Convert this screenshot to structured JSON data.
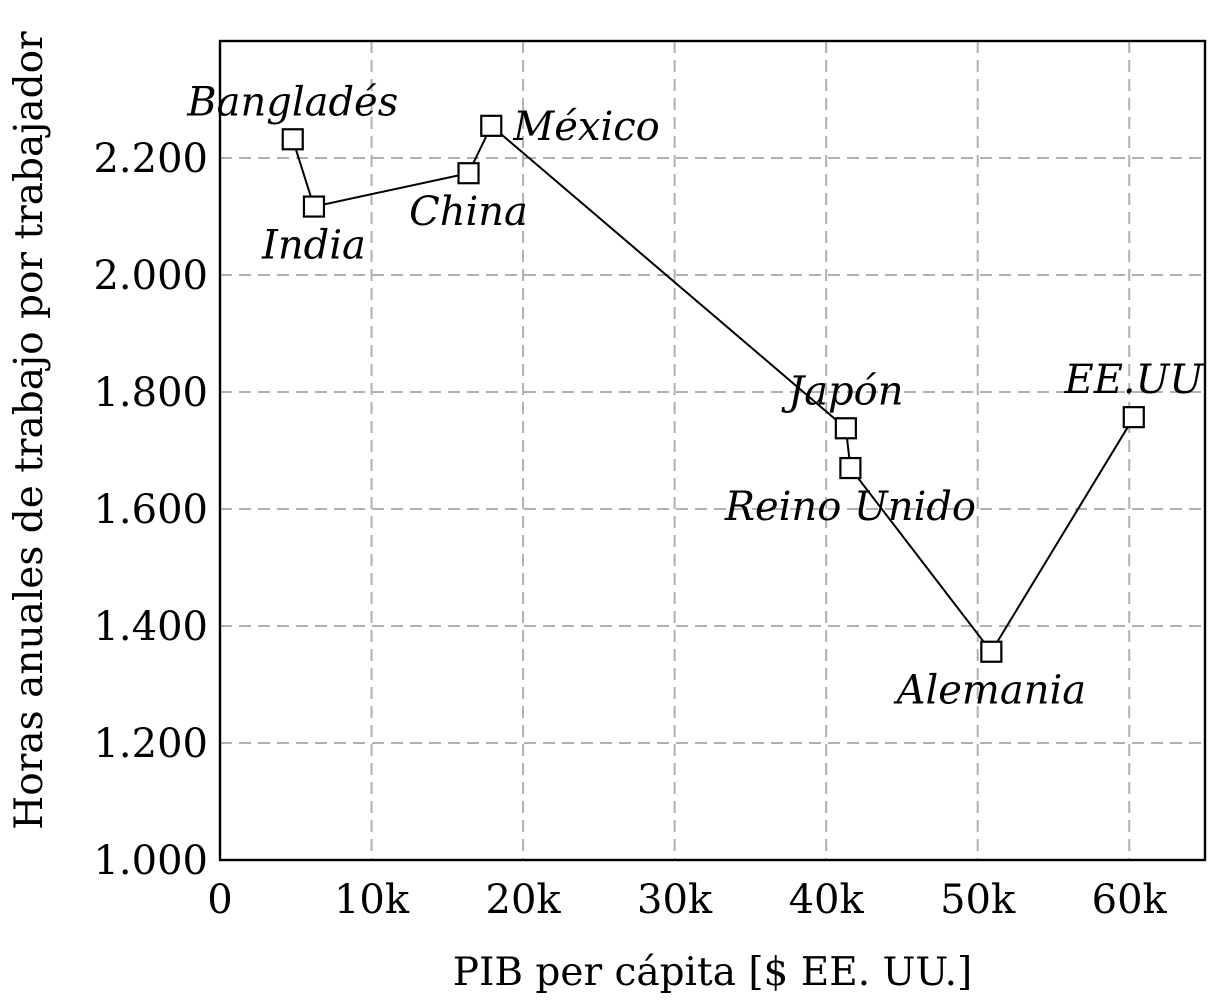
{
  "chart_data": {
    "type": "line",
    "xlabel": "PIB per cápita [$ EE. UU.]",
    "ylabel": "Horas anuales de trabajo por trabajador",
    "xlim": [
      0,
      65000
    ],
    "ylim": [
      1000,
      2400
    ],
    "x_ticks": [
      {
        "value": 0,
        "label": "0"
      },
      {
        "value": 10000,
        "label": "10k"
      },
      {
        "value": 20000,
        "label": "20k"
      },
      {
        "value": 30000,
        "label": "30k"
      },
      {
        "value": 40000,
        "label": "40k"
      },
      {
        "value": 50000,
        "label": "50k"
      },
      {
        "value": 60000,
        "label": "60k"
      }
    ],
    "y_ticks": [
      {
        "value": 1000,
        "label": "1.000"
      },
      {
        "value": 1200,
        "label": "1.200"
      },
      {
        "value": 1400,
        "label": "1.400"
      },
      {
        "value": 1600,
        "label": "1.600"
      },
      {
        "value": 1800,
        "label": "1.800"
      },
      {
        "value": 2000,
        "label": "2.000"
      },
      {
        "value": 2200,
        "label": "2.200"
      }
    ],
    "grid": true,
    "marker": "square",
    "points": [
      {
        "label": "Bangladés",
        "x": 4800,
        "y": 2232,
        "label_pos": "above"
      },
      {
        "label": "India",
        "x": 6200,
        "y": 2117,
        "label_pos": "below"
      },
      {
        "label": "China",
        "x": 16400,
        "y": 2174,
        "label_pos": "below"
      },
      {
        "label": "México",
        "x": 17900,
        "y": 2255,
        "label_pos": "right"
      },
      {
        "label": "Japón",
        "x": 41300,
        "y": 1738,
        "label_pos": "above"
      },
      {
        "label": "Reino Unido",
        "x": 41600,
        "y": 1670,
        "label_pos": "below"
      },
      {
        "label": "Alemania",
        "x": 50900,
        "y": 1356,
        "label_pos": "below"
      },
      {
        "label": "EE.UU",
        "x": 60300,
        "y": 1757,
        "label_pos": "above"
      }
    ]
  }
}
